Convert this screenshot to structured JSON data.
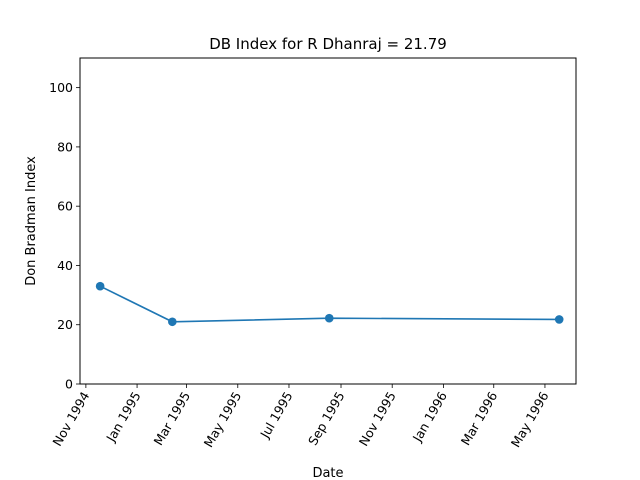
{
  "chart_data": {
    "type": "line",
    "title": "DB Index for R Dhanraj = 21.79",
    "xlabel": "Date",
    "ylabel": "Don Bradman Index",
    "xlim": [
      "1994-10-25",
      "1996-06-07"
    ],
    "ylim": [
      0,
      110
    ],
    "x_ticks": [
      {
        "date": "1994-11-01",
        "label": "Nov 1994"
      },
      {
        "date": "1995-01-01",
        "label": "Jan 1995"
      },
      {
        "date": "1995-03-01",
        "label": "Mar 1995"
      },
      {
        "date": "1995-05-01",
        "label": "May 1995"
      },
      {
        "date": "1995-07-01",
        "label": "Jul 1995"
      },
      {
        "date": "1995-09-01",
        "label": "Sep 1995"
      },
      {
        "date": "1995-11-01",
        "label": "Nov 1995"
      },
      {
        "date": "1996-01-01",
        "label": "Jan 1996"
      },
      {
        "date": "1996-03-01",
        "label": "Mar 1996"
      },
      {
        "date": "1996-05-01",
        "label": "May 1996"
      }
    ],
    "y_ticks": [
      0,
      20,
      40,
      60,
      80,
      100
    ],
    "grid": false,
    "series": [
      {
        "color": "#1f77b4",
        "x": [
          "1994-11-18",
          "1995-02-12",
          "1995-08-18",
          "1996-05-18"
        ],
        "y": [
          33.0,
          21.0,
          22.2,
          21.79
        ]
      }
    ]
  }
}
